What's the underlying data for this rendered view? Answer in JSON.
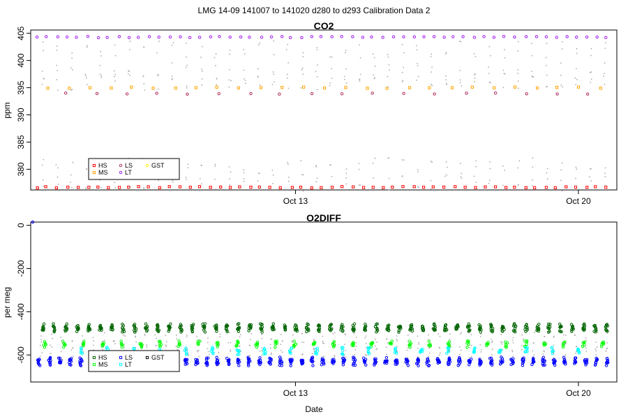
{
  "figure": {
    "title": "LMG   14-09    141007 to 141020    d280 to d293   Calibration Data 2"
  },
  "chart_data": [
    {
      "type": "scatter",
      "title": "CO2",
      "xlabel": "",
      "ylabel": "ppm",
      "xlim": [
        6.45,
        20.95
      ],
      "ylim": [
        376.2,
        405.6
      ],
      "x_ticks": [
        {
          "value": 13,
          "label": "Oct 13"
        },
        {
          "value": 20,
          "label": "Oct 20"
        }
      ],
      "y_ticks": [
        {
          "value": 380,
          "label": "380"
        },
        {
          "value": 385,
          "label": "385"
        },
        {
          "value": 390,
          "label": "390"
        },
        {
          "value": 395,
          "label": "395"
        },
        {
          "value": 400,
          "label": "400"
        },
        {
          "value": 405,
          "label": "405"
        }
      ],
      "grid": false,
      "legend_position": "bottom-left",
      "legend": [
        {
          "name": "HS",
          "color": "#ff0000",
          "marker": "square"
        },
        {
          "name": "MS",
          "color": "#ffa500",
          "marker": "square"
        },
        {
          "name": "LS",
          "color": "#b03060",
          "marker": "circle"
        },
        {
          "name": "LT",
          "color": "#a020f0",
          "marker": "circle"
        },
        {
          "name": "GST",
          "color": "#ffff00",
          "marker": "circle"
        }
      ],
      "series": [
        {
          "name": "HS",
          "color": "#ff0000",
          "marker": "square",
          "x_start": 6.6,
          "x_end": 20.7,
          "count": 57,
          "values": [
            376.7
          ]
        },
        {
          "name": "MS",
          "color": "#ffa500",
          "marker": "square",
          "x_start": 6.85,
          "x_end": 20.55,
          "count": 27,
          "values": [
            395.0
          ]
        },
        {
          "name": "LS",
          "color": "#b03060",
          "marker": "circle",
          "x_start": 7.3,
          "x_end": 20.25,
          "count": 18,
          "values": [
            393.9
          ]
        },
        {
          "name": "LT",
          "color": "#a020f0",
          "marker": "circle",
          "x_start": 6.6,
          "x_end": 20.7,
          "count": 57,
          "values": [
            404.3
          ]
        },
        {
          "name": "GST",
          "color": "#aaaaaa",
          "marker": "dot",
          "x_start": 6.75,
          "x_end": 20.65,
          "count": 40,
          "values": [
            377.5,
            380.5,
            396.0,
            398.0,
            402.0
          ]
        }
      ]
    },
    {
      "type": "scatter",
      "title": "O2DIFF",
      "xlabel": "Date",
      "ylabel": "per meg",
      "xlim": [
        6.45,
        20.95
      ],
      "ylim": [
        -725,
        15
      ],
      "x_ticks": [
        {
          "value": 13,
          "label": "Oct 13"
        },
        {
          "value": 20,
          "label": "Oct 20"
        }
      ],
      "y_ticks": [
        {
          "value": -600,
          "label": "-600"
        },
        {
          "value": -400,
          "label": "-400"
        },
        {
          "value": -200,
          "label": "-200"
        },
        {
          "value": 0,
          "label": "0"
        }
      ],
      "grid": false,
      "legend_position": "bottom-left",
      "legend": [
        {
          "name": "HS",
          "color": "#006400",
          "marker": "square"
        },
        {
          "name": "MS",
          "color": "#00ff00",
          "marker": "square"
        },
        {
          "name": "LS",
          "color": "#0000ff",
          "marker": "square"
        },
        {
          "name": "LT",
          "color": "#00ffff",
          "marker": "square"
        },
        {
          "name": "GST",
          "color": "#000000",
          "marker": "square"
        }
      ],
      "series": [
        {
          "name": "HS",
          "color": "#006400",
          "marker": "circle",
          "x_start": 6.75,
          "x_end": 20.7,
          "count": 50,
          "values": [
            -475,
            -465,
            -485
          ]
        },
        {
          "name": "MS",
          "color": "#00ff00",
          "marker": "circle",
          "x_start": 6.8,
          "x_end": 20.6,
          "count": 30,
          "values": [
            -545,
            -555
          ]
        },
        {
          "name": "LS",
          "color": "#0000ff",
          "marker": "circle",
          "x_start": 6.65,
          "x_end": 20.7,
          "count": 55,
          "values": [
            -630,
            -640,
            -620
          ]
        },
        {
          "name": "LT",
          "color": "#00ffff",
          "marker": "circle",
          "x_start": 7.7,
          "x_end": 20.0,
          "count": 20,
          "values": [
            -575,
            -590
          ]
        },
        {
          "name": "GST",
          "color": "#aaaaaa",
          "marker": "dot",
          "x_start": 6.7,
          "x_end": 20.7,
          "count": 55,
          "values": [
            -520,
            -560,
            -600
          ]
        },
        {
          "name": "outlier",
          "color": "#0000ff",
          "marker": "circle",
          "points": [
            {
              "x": 6.5,
              "y": 50
            }
          ]
        }
      ]
    }
  ]
}
